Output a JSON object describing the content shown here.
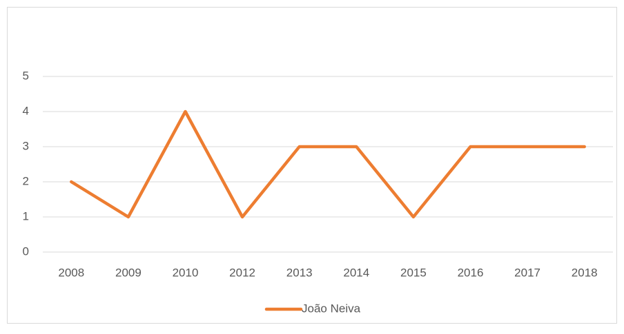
{
  "chart_data": {
    "type": "line",
    "categories": [
      "2008",
      "2009",
      "2010",
      "2012",
      "2013",
      "2014",
      "2015",
      "2016",
      "2017",
      "2018"
    ],
    "series": [
      {
        "name": "João Neiva",
        "color": "#ed7d31",
        "values": [
          2,
          1,
          4,
          1,
          3,
          3,
          1,
          3,
          3,
          3
        ]
      }
    ],
    "ylim": [
      0,
      5
    ],
    "yticks": [
      0,
      1,
      2,
      3,
      4,
      5
    ],
    "grid": true,
    "legend": "bottom"
  }
}
